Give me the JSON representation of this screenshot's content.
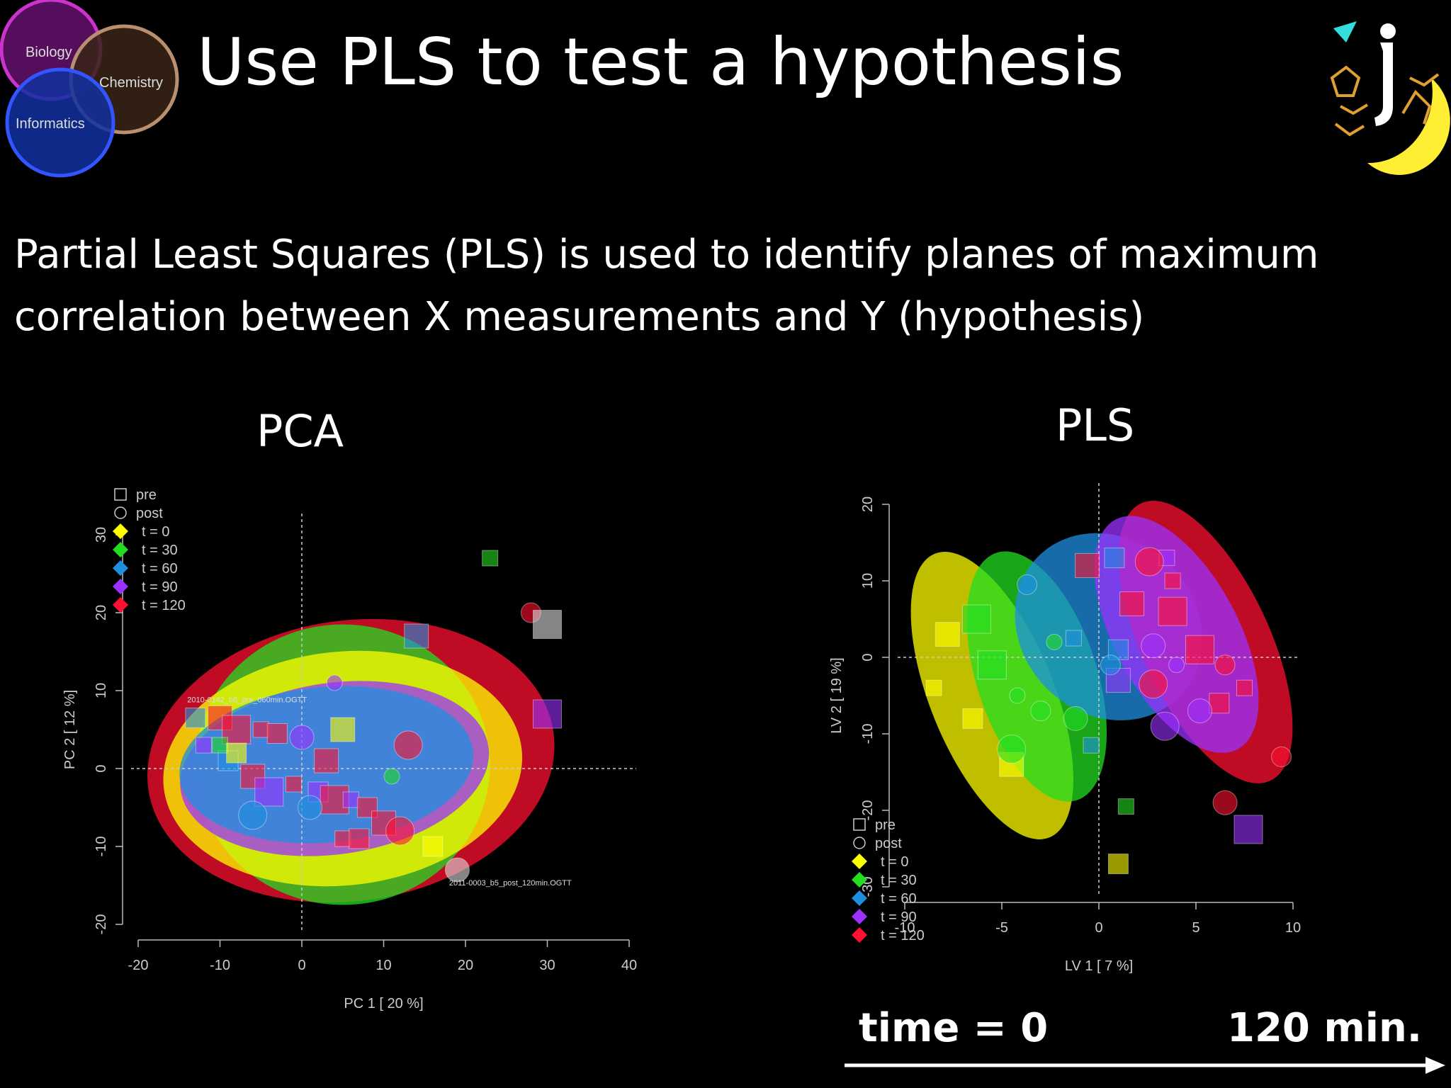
{
  "slide": {
    "title": "Use PLS to test a hypothesis",
    "description": "Partial Least Squares (PLS) is used to identify planes of maximum correlation between X measurements and Y (hypothesis)",
    "venn": [
      "Biology",
      "Chemistry",
      "Informatics"
    ],
    "footer_left": "time = 0",
    "footer_right": "120 min."
  },
  "colors": {
    "t0": "#ffff00",
    "t30": "#22dd22",
    "t60": "#1e8fe0",
    "t90": "#9b30ff",
    "t120": "#ff1030"
  },
  "chart_data": [
    {
      "type": "scatter",
      "title": "PCA",
      "xlabel": "PC 1 [ 20 %]",
      "ylabel": "PC 2 [ 12 %]",
      "xlim": [
        -20,
        40
      ],
      "ylim": [
        -20,
        30
      ],
      "xticks": [
        "-20",
        "-10",
        "0",
        "10",
        "20",
        "30",
        "40"
      ],
      "yticks": [
        "-20",
        "-10",
        "0",
        "10",
        "20",
        "30"
      ],
      "legend": [
        "pre",
        "post",
        "t = 0",
        "t = 30",
        "t = 60",
        "t = 90",
        "t = 120"
      ],
      "legend_position": "top-left",
      "annotations": [
        {
          "text": "2010-0142_b8_pre_060min.OGTT",
          "x": -14,
          "y": 8.5
        },
        {
          "text": "2011-0003_b5_post_120min.OGTT",
          "x": 18,
          "y": -15
        }
      ],
      "ellipses": [
        {
          "group": "t = 120",
          "cx": 6,
          "cy": 1,
          "rx": 25,
          "ry": 18,
          "angle": -8
        },
        {
          "group": "t = 30",
          "cx": 5,
          "cy": 0.5,
          "rx": 18,
          "ry": 18,
          "angle": 0
        },
        {
          "group": "t = 0",
          "cx": 5,
          "cy": 0,
          "rx": 22,
          "ry": 15,
          "angle": -6
        },
        {
          "group": "t = 90",
          "cx": 4,
          "cy": 0,
          "rx": 19,
          "ry": 11,
          "angle": -8
        },
        {
          "group": "t = 60",
          "cx": 3,
          "cy": 0.5,
          "rx": 18,
          "ry": 10,
          "angle": -5
        }
      ],
      "points": [
        {
          "x": 23,
          "y": 27,
          "g": "t30",
          "s": "pre"
        },
        {
          "x": 28,
          "y": 20,
          "g": "t120",
          "s": "post"
        },
        {
          "x": 14,
          "y": 17,
          "g": "t60",
          "s": "pre"
        },
        {
          "x": 30,
          "y": 7,
          "g": "t90",
          "s": "pre"
        },
        {
          "x": 4,
          "y": 11,
          "g": "t90",
          "s": "post"
        },
        {
          "x": -13,
          "y": 6.5,
          "g": "t60",
          "s": "pre"
        },
        {
          "x": -10,
          "y": 6.5,
          "g": "t120",
          "s": "pre"
        },
        {
          "x": -8,
          "y": 5,
          "g": "t120",
          "s": "pre"
        },
        {
          "x": -5,
          "y": 5,
          "g": "t120",
          "s": "pre"
        },
        {
          "x": -3,
          "y": 4.5,
          "g": "t120",
          "s": "pre"
        },
        {
          "x": 0,
          "y": 4,
          "g": "t90",
          "s": "post"
        },
        {
          "x": 13,
          "y": 3,
          "g": "t120",
          "s": "post"
        },
        {
          "x": -12,
          "y": 3,
          "g": "t90",
          "s": "pre"
        },
        {
          "x": -9,
          "y": 1,
          "g": "t60",
          "s": "pre"
        },
        {
          "x": -6,
          "y": -1,
          "g": "t120",
          "s": "pre"
        },
        {
          "x": -4,
          "y": -3,
          "g": "t90",
          "s": "pre"
        },
        {
          "x": -1,
          "y": -2,
          "g": "t120",
          "s": "pre"
        },
        {
          "x": 2,
          "y": -3,
          "g": "t90",
          "s": "pre"
        },
        {
          "x": 3,
          "y": 1,
          "g": "t120",
          "s": "pre"
        },
        {
          "x": 4,
          "y": -4,
          "g": "t120",
          "s": "pre"
        },
        {
          "x": 6,
          "y": -4,
          "g": "t90",
          "s": "pre"
        },
        {
          "x": 8,
          "y": -5,
          "g": "t120",
          "s": "pre"
        },
        {
          "x": 10,
          "y": -7,
          "g": "t120",
          "s": "pre"
        },
        {
          "x": 12,
          "y": -8,
          "g": "t120",
          "s": "post"
        },
        {
          "x": 5,
          "y": -9,
          "g": "t120",
          "s": "pre"
        },
        {
          "x": 7,
          "y": -9,
          "g": "t120",
          "s": "pre"
        },
        {
          "x": 1,
          "y": -5,
          "g": "t60",
          "s": "post"
        },
        {
          "x": -6,
          "y": -6,
          "g": "t60",
          "s": "post"
        },
        {
          "x": 11,
          "y": -1,
          "g": "t30",
          "s": "post"
        },
        {
          "x": 16,
          "y": -10,
          "g": "t0",
          "s": "pre"
        },
        {
          "x": 19,
          "y": -13,
          "g": "post",
          "s": "post"
        },
        {
          "x": 30,
          "y": 18.5,
          "g": "post",
          "s": "pre"
        },
        {
          "x": -10,
          "y": 3,
          "g": "t30",
          "s": "pre"
        },
        {
          "x": -8,
          "y": 2,
          "g": "t0",
          "s": "pre"
        },
        {
          "x": 5,
          "y": 5,
          "g": "t0",
          "s": "pre"
        }
      ]
    },
    {
      "type": "scatter",
      "title": "PLS",
      "xlabel": "LV 1 [ 7 %]",
      "ylabel": "LV 2 [ 19 %]",
      "xlim": [
        -10,
        10
      ],
      "ylim": [
        -30,
        20
      ],
      "xticks": [
        "-10",
        "-5",
        "0",
        "5",
        "10"
      ],
      "yticks": [
        "-30",
        "-20",
        "-10",
        "0",
        "10",
        "20"
      ],
      "legend": [
        "pre",
        "post",
        "t = 0",
        "t = 30",
        "t = 60",
        "t = 90",
        "t = 120"
      ],
      "legend_position": "bottom-left",
      "ellipses": [
        {
          "group": "t = 0",
          "cx": -5.5,
          "cy": -5,
          "rx": 3.2,
          "ry": 20,
          "angle": -22
        },
        {
          "group": "t = 30",
          "cx": -3.2,
          "cy": -2.5,
          "rx": 3.1,
          "ry": 17,
          "angle": -18
        },
        {
          "group": "t = 60",
          "cx": 0.5,
          "cy": 4,
          "rx": 4.5,
          "ry": 13,
          "angle": -45
        },
        {
          "group": "t = 120",
          "cx": 5.5,
          "cy": 2,
          "rx": 3.3,
          "ry": 20,
          "angle": -25
        },
        {
          "group": "t = 90",
          "cx": 4,
          "cy": 3,
          "rx": 3.2,
          "ry": 17,
          "angle": -28
        }
      ],
      "points": [
        {
          "x": 3.5,
          "y": 13,
          "g": "t90",
          "s": "pre"
        },
        {
          "x": 0.8,
          "y": 13,
          "g": "t60",
          "s": "pre"
        },
        {
          "x": -0.6,
          "y": 12,
          "g": "t120",
          "s": "pre"
        },
        {
          "x": 2.6,
          "y": 12.5,
          "g": "t120",
          "s": "post"
        },
        {
          "x": 3.8,
          "y": 10,
          "g": "t120",
          "s": "pre"
        },
        {
          "x": -3.7,
          "y": 9.5,
          "g": "t60",
          "s": "post"
        },
        {
          "x": 1.7,
          "y": 7,
          "g": "t120",
          "s": "pre"
        },
        {
          "x": 3.8,
          "y": 6,
          "g": "t120",
          "s": "pre"
        },
        {
          "x": -1.3,
          "y": 2.5,
          "g": "t60",
          "s": "pre"
        },
        {
          "x": 1,
          "y": 1,
          "g": "t60",
          "s": "pre"
        },
        {
          "x": 2.8,
          "y": 1.5,
          "g": "t90",
          "s": "post"
        },
        {
          "x": 5.2,
          "y": 1,
          "g": "t120",
          "s": "pre"
        },
        {
          "x": 4,
          "y": -1,
          "g": "t90",
          "s": "post"
        },
        {
          "x": 6.5,
          "y": -1,
          "g": "t120",
          "s": "post"
        },
        {
          "x": 1,
          "y": -3,
          "g": "t90",
          "s": "pre"
        },
        {
          "x": 2.8,
          "y": -3.5,
          "g": "t120",
          "s": "post"
        },
        {
          "x": 7.5,
          "y": -4,
          "g": "t120",
          "s": "pre"
        },
        {
          "x": 6.2,
          "y": -6,
          "g": "t120",
          "s": "pre"
        },
        {
          "x": 5.2,
          "y": -7,
          "g": "t90",
          "s": "post"
        },
        {
          "x": 3.4,
          "y": -9,
          "g": "t90",
          "s": "post"
        },
        {
          "x": -0.4,
          "y": -11.5,
          "g": "t60",
          "s": "pre"
        },
        {
          "x": 9.4,
          "y": -13,
          "g": "t120",
          "s": "post"
        },
        {
          "x": 6.5,
          "y": -19,
          "g": "t120",
          "s": "post"
        },
        {
          "x": 7.7,
          "y": -22.5,
          "g": "t90",
          "s": "pre"
        },
        {
          "x": 1.4,
          "y": -19.5,
          "g": "t30",
          "s": "pre"
        },
        {
          "x": 1,
          "y": -27,
          "g": "t0",
          "s": "pre"
        },
        {
          "x": -7.8,
          "y": 3,
          "g": "t0",
          "s": "pre"
        },
        {
          "x": -5.5,
          "y": -1,
          "g": "t30",
          "s": "pre"
        },
        {
          "x": -4.2,
          "y": -5,
          "g": "t30",
          "s": "post"
        },
        {
          "x": -3,
          "y": -7,
          "g": "t30",
          "s": "post"
        },
        {
          "x": -1.2,
          "y": -8,
          "g": "t30",
          "s": "post"
        },
        {
          "x": -6.3,
          "y": 5,
          "g": "t30",
          "s": "pre"
        },
        {
          "x": -8.5,
          "y": -4,
          "g": "t0",
          "s": "pre"
        },
        {
          "x": -6.5,
          "y": -8,
          "g": "t0",
          "s": "pre"
        },
        {
          "x": -4.5,
          "y": -14,
          "g": "t0",
          "s": "pre"
        },
        {
          "x": -4.5,
          "y": -12,
          "g": "t30",
          "s": "post"
        },
        {
          "x": -2.3,
          "y": 2,
          "g": "t30",
          "s": "post"
        },
        {
          "x": 0.6,
          "y": -1,
          "g": "t60",
          "s": "post"
        }
      ]
    }
  ]
}
